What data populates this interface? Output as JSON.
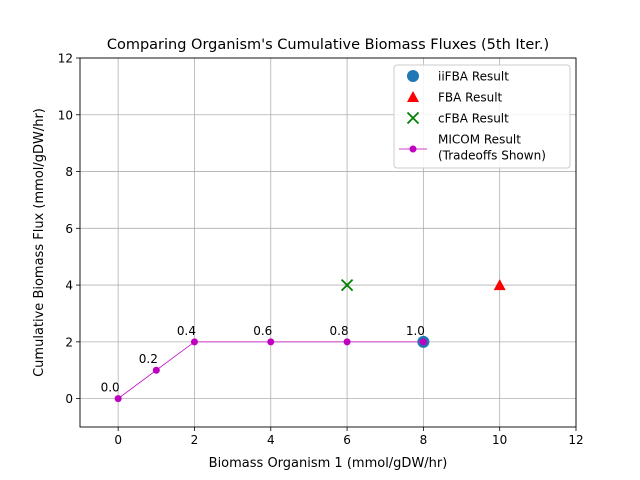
{
  "chart_data": {
    "type": "scatter",
    "title": "Comparing Organism's Cumulative Biomass Fluxes (5th Iter.)",
    "xlabel": "Biomass Organism 1 (mmol/gDW/hr)",
    "ylabel": "Cumulative Biomass Flux (mmol/gDW/hr)",
    "xlim": [
      -1,
      12
    ],
    "ylim": [
      -1,
      12
    ],
    "xticks": [
      0,
      2,
      4,
      6,
      8,
      10,
      12
    ],
    "yticks": [
      0,
      2,
      4,
      6,
      8,
      10,
      12
    ],
    "grid": true,
    "legend_position": "top-right",
    "series": [
      {
        "name": "iiFBA Result",
        "marker": "circle",
        "color": "#1f77b4",
        "points": [
          [
            8,
            2
          ]
        ]
      },
      {
        "name": "FBA Result",
        "marker": "triangle",
        "color": "#ff0000",
        "points": [
          [
            10,
            4
          ]
        ]
      },
      {
        "name": "cFBA Result",
        "marker": "x",
        "color": "#008000",
        "points": [
          [
            6,
            4
          ]
        ]
      },
      {
        "name": "MICOM Result\n(Tradeoffs Shown)",
        "marker": "line-dot",
        "color": "#bf00bf",
        "points": [
          [
            0,
            0
          ],
          [
            1,
            1
          ],
          [
            2,
            2
          ],
          [
            4,
            2
          ],
          [
            6,
            2
          ],
          [
            8,
            2
          ]
        ],
        "labels": [
          "0.0",
          "0.2",
          "0.4",
          "0.6",
          "0.8",
          "1.0"
        ]
      }
    ]
  }
}
